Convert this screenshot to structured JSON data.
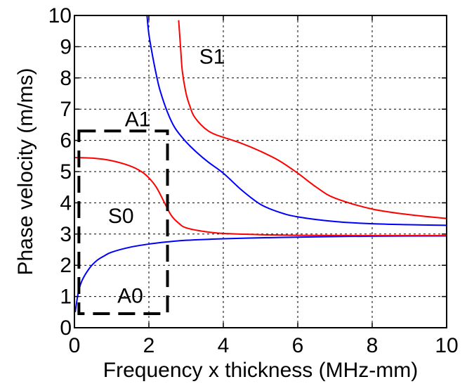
{
  "chart_data": {
    "type": "line",
    "title": "",
    "xlabel": "Frequency x thickness (MHz-mm)",
    "ylabel": "Phase velocity (m/ms)",
    "xlim": [
      0,
      10
    ],
    "ylim": [
      0,
      10
    ],
    "x_ticks": [
      "0",
      "2",
      "4",
      "6",
      "8",
      "10"
    ],
    "y_ticks": [
      "0",
      "1",
      "2",
      "3",
      "4",
      "5",
      "6",
      "7",
      "8",
      "9",
      "10"
    ],
    "grid": true,
    "series": [
      {
        "color": "#0000ff",
        "x": [
          0.02,
          0.1,
          0.2,
          0.4,
          0.6,
          0.8,
          1.0,
          1.5,
          2.0,
          2.5,
          3.0,
          4.0,
          5.0,
          6.0,
          7.0,
          8.0,
          10.0
        ],
        "y": [
          0.5,
          1.1,
          1.5,
          1.9,
          2.15,
          2.3,
          2.42,
          2.58,
          2.68,
          2.75,
          2.8,
          2.85,
          2.88,
          2.9,
          2.92,
          2.93,
          2.94
        ]
      },
      {
        "color": "#0000ff",
        "x": [
          1.95,
          2.0,
          2.1,
          2.2,
          2.3,
          2.5,
          2.7,
          3.0,
          3.3,
          3.6,
          4.0,
          4.5,
          5.0,
          5.5,
          6.0,
          7.0,
          8.0,
          9.0,
          10.0
        ],
        "y": [
          10.0,
          9.4,
          8.7,
          8.1,
          7.6,
          6.9,
          6.4,
          5.95,
          5.6,
          5.3,
          4.95,
          4.4,
          3.95,
          3.7,
          3.55,
          3.4,
          3.33,
          3.3,
          3.28
        ]
      },
      {
        "color": "#ff0000",
        "x": [
          0.0,
          0.5,
          1.0,
          1.5,
          1.8,
          2.0,
          2.2,
          2.4,
          2.6,
          2.8,
          3.0,
          3.5,
          4.0,
          5.0,
          6.0,
          8.0,
          10.0
        ],
        "y": [
          5.45,
          5.43,
          5.35,
          5.18,
          5.0,
          4.8,
          4.5,
          4.05,
          3.6,
          3.35,
          3.2,
          3.08,
          3.02,
          2.98,
          2.96,
          2.95,
          2.95
        ]
      },
      {
        "color": "#ff0000",
        "x": [
          2.8,
          2.85,
          2.9,
          3.0,
          3.1,
          3.2,
          3.4,
          3.6,
          3.8,
          4.0,
          4.5,
          5.0,
          5.5,
          6.0,
          6.5,
          7.0,
          8.0,
          9.0,
          10.0
        ],
        "y": [
          9.85,
          9.0,
          8.2,
          7.5,
          7.1,
          6.8,
          6.5,
          6.3,
          6.18,
          6.1,
          5.9,
          5.65,
          5.35,
          4.95,
          4.5,
          4.15,
          3.8,
          3.62,
          3.5
        ]
      }
    ],
    "annotations": [
      {
        "text": "S1",
        "x": 3.7,
        "y": 8.7
      },
      {
        "text": "A1",
        "x": 1.7,
        "y": 6.7
      },
      {
        "text": "S0",
        "x": 1.25,
        "y": 3.6
      },
      {
        "text": "A0",
        "x": 1.5,
        "y": 1.05
      }
    ],
    "highlight_box": {
      "x0": 0.12,
      "x1": 2.5,
      "y0": 0.45,
      "y1": 6.3
    }
  }
}
